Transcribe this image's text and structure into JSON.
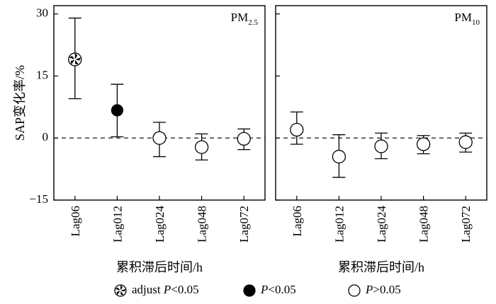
{
  "chart_data": {
    "type": "scatter",
    "subtype": "error-bar",
    "ylabel": "SAP变化率/%",
    "xlabel": "累积滞后时间/h",
    "ylim": [
      -15,
      32
    ],
    "yticks": [
      30,
      15,
      0,
      -15
    ],
    "ytick_labels": [
      "30",
      "15",
      "0",
      "−15"
    ],
    "categories": [
      "Lag06",
      "Lag012",
      "Lag024",
      "Lag048",
      "Lag072"
    ],
    "reference_line": 0,
    "panels": [
      {
        "label_main": "PM",
        "label_sub": "2.5",
        "points": [
          {
            "category": "Lag06",
            "value": 19.0,
            "lower": 9.5,
            "upper": 29.0,
            "marker": "adjust"
          },
          {
            "category": "Lag012",
            "value": 6.7,
            "lower": 0.3,
            "upper": 13.0,
            "marker": "filled"
          },
          {
            "category": "Lag024",
            "value": 0.0,
            "lower": -4.5,
            "upper": 3.8,
            "marker": "open"
          },
          {
            "category": "Lag048",
            "value": -2.2,
            "lower": -5.3,
            "upper": 1.0,
            "marker": "open"
          },
          {
            "category": "Lag072",
            "value": -0.2,
            "lower": -2.8,
            "upper": 2.2,
            "marker": "open"
          }
        ]
      },
      {
        "label_main": "PM",
        "label_sub": "10",
        "points": [
          {
            "category": "Lag06",
            "value": 2.0,
            "lower": -1.5,
            "upper": 6.3,
            "marker": "open"
          },
          {
            "category": "Lag012",
            "value": -4.5,
            "lower": -9.5,
            "upper": 0.8,
            "marker": "open"
          },
          {
            "category": "Lag024",
            "value": -2.0,
            "lower": -5.0,
            "upper": 1.2,
            "marker": "open"
          },
          {
            "category": "Lag048",
            "value": -1.5,
            "lower": -3.8,
            "upper": 0.6,
            "marker": "open"
          },
          {
            "category": "Lag072",
            "value": -1.0,
            "lower": -3.4,
            "upper": 1.2,
            "marker": "open"
          }
        ]
      }
    ],
    "legend": [
      {
        "marker": "adjust",
        "pre": "adjust ",
        "p": "P",
        "text": "<0.05"
      },
      {
        "marker": "filled",
        "pre": "",
        "p": "P",
        "text": "<0.05"
      },
      {
        "marker": "open",
        "pre": "",
        "p": "P",
        "text": ">0.05"
      }
    ],
    "legend_position": "bottom",
    "grid": false
  }
}
